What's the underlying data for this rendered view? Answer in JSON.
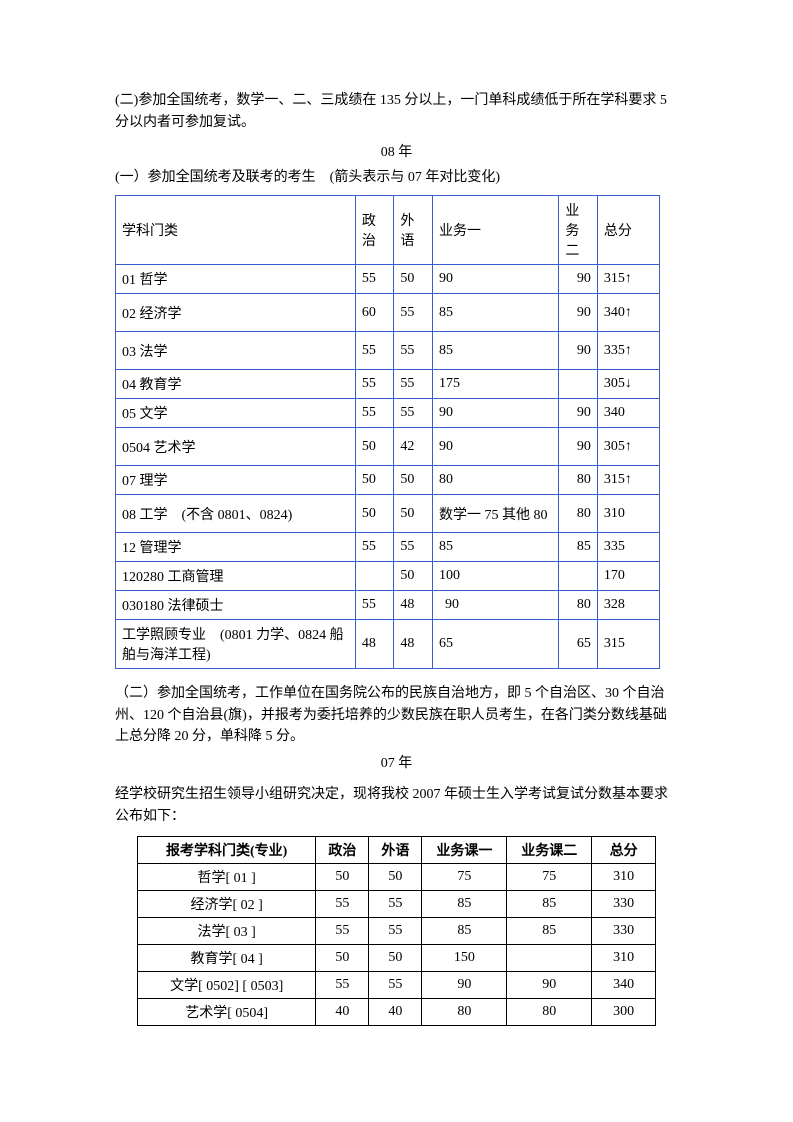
{
  "intro_para": "(二)参加全国统考，数学一、二、三成绩在 135 分以上，一门单科成绩低于所在学科要求 5 分以内者可参加复试。",
  "year08_label": "08 年",
  "section1_label": "(一）参加全国统考及联考的考生　(箭头表示与 07 年对比变化)",
  "table1": {
    "headers": {
      "subject": "学科门类",
      "politics": "政治",
      "foreign": "外语",
      "biz1": "业务一",
      "biz2": "业务二",
      "total": "总分"
    },
    "rows": [
      {
        "subject": "01 哲学",
        "pol": "55",
        "lang": "50",
        "b1": "90",
        "b2": "90",
        "tot": "315↑"
      },
      {
        "subject": "02 经济学",
        "pol": "60",
        "lang": "55",
        "b1": "85",
        "b2": "90",
        "tot": "340↑",
        "tall": true
      },
      {
        "subject": "03 法学",
        "pol": "55",
        "lang": "55",
        "b1": "85",
        "b2": "90",
        "tot": "335↑",
        "tall": true
      },
      {
        "subject": "04 教育学",
        "pol": "55",
        "lang": "55",
        "b1": "175",
        "b2": "",
        "tot": "305↓",
        "pol_r": true,
        "lang_r": true
      },
      {
        "subject": "05 文学",
        "pol": "55",
        "lang": "55",
        "b1": "90",
        "b2": "90",
        "tot": "340"
      },
      {
        "subject": "0504 艺术学",
        "pol": "50",
        "lang": "42",
        "b1": "90",
        "b2": "90",
        "tot": "305↑",
        "tall": true
      },
      {
        "subject": "07 理学",
        "pol": "50",
        "lang": "50",
        "b1": "80",
        "b2": "80",
        "tot": "315↑"
      },
      {
        "subject": "08 工学　(不含 0801、0824)",
        "pol": "50",
        "lang": "50",
        "b1": "数学一 75 其他 80",
        "b2": "80",
        "tot": "310",
        "tall": true
      },
      {
        "subject": "12 管理学",
        "pol": "55",
        "lang": "55",
        "b1": "85",
        "b2": "85",
        "tot": "335",
        "lang_r": true
      },
      {
        "subject": "120280 工商管理",
        "pol": "",
        "lang": "50",
        "b1": "100",
        "b2": "",
        "tot": "170",
        "lang_r": true
      },
      {
        "subject": "030180 法律硕士",
        "pol": "55",
        "lang": "48",
        "b1": "90",
        "b2": "80",
        "tot": "328",
        "pol_r": true,
        "b1_pad": true
      },
      {
        "subject": "工学照顾专业　(0801 力学、0824 船舶与海洋工程)",
        "pol": "48",
        "lang": "48",
        "b1": "65",
        "b2": "65",
        "tot": "315",
        "tall": true
      }
    ]
  },
  "section2_para": "（二）参加全国统考，工作单位在国务院公布的民族自治地方，即 5 个自治区、30 个自治州、120 个自治县(旗)，并报考为委托培养的少数民族在职人员考生，在各门类分数线基础上总分降 20 分，单科降 5 分。",
  "year07_label": "07 年",
  "para07": "经学校研究生招生领导小组研究决定，现将我校 2007 年硕士生入学考试复试分数基本要求公布如下：",
  "table2": {
    "headers": {
      "subject": "报考学科门类(专业)",
      "politics": "政治",
      "foreign": "外语",
      "biz1": "业务课一",
      "biz2": "业务课二",
      "total": "总分"
    },
    "rows": [
      {
        "subject": "哲学[ 01 ]",
        "pol": "50",
        "lang": "50",
        "b1": "75",
        "b2": "75",
        "tot": "310"
      },
      {
        "subject": "经济学[ 02 ]",
        "pol": "55",
        "lang": "55",
        "b1": "85",
        "b2": "85",
        "tot": "330"
      },
      {
        "subject": "法学[ 03 ]",
        "pol": "55",
        "lang": "55",
        "b1": "85",
        "b2": "85",
        "tot": "330"
      },
      {
        "subject": "教育学[ 04 ]",
        "pol": "50",
        "lang": "50",
        "b1": "150",
        "b2": "",
        "tot": "310"
      },
      {
        "subject": "文学[ 0502] [ 0503]",
        "pol": "55",
        "lang": "55",
        "b1": "90",
        "b2": "90",
        "tot": "340"
      },
      {
        "subject": "艺术学[ 0504]",
        "pol": "40",
        "lang": "40",
        "b1": "80",
        "b2": "80",
        "tot": "300"
      }
    ]
  }
}
